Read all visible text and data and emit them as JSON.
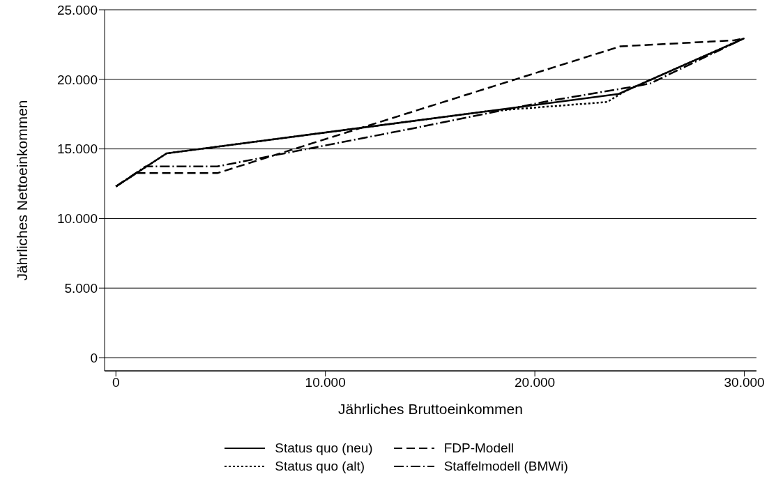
{
  "chart_data": {
    "type": "line",
    "xlabel": "Jährliches Bruttoeinkommen",
    "ylabel": "Jährliches Nettoeinkommen",
    "xlim": [
      -540,
      30580
    ],
    "ylim": [
      -950,
      25000
    ],
    "xticks": [
      0,
      {
        "value": 10000,
        "label": "10.000"
      },
      {
        "value": 20000,
        "label": "20.000"
      },
      {
        "value": 30000,
        "label": "30.000"
      }
    ],
    "yticks": [
      0,
      {
        "value": 5000,
        "label": "5.000"
      },
      {
        "value": 10000,
        "label": "10.000"
      },
      {
        "value": 15000,
        "label": "15.000"
      },
      {
        "value": 20000,
        "label": "20.000"
      },
      {
        "value": 25000,
        "label": "25.000"
      }
    ],
    "grid": "y",
    "legend": "bottom",
    "marker": "none",
    "series": [
      {
        "name": "Status quo (neu)",
        "color": "#000000",
        "line_style": "solid",
        "x": [
          0,
          2420,
          24000,
          30000
        ],
        "values": [
          12300,
          14680,
          18950,
          22950
        ]
      },
      {
        "name": "FDP-Modell",
        "color": "#000000",
        "line_style": "dashed",
        "x": [
          0,
          980,
          4840,
          24080,
          29500,
          30000
        ],
        "values": [
          12300,
          13260,
          13260,
          22370,
          22800,
          22950
        ]
      },
      {
        "name": "Status quo (alt)",
        "color": "#000000",
        "line_style": "dotted",
        "x": [
          0,
          2420,
          17700,
          23450,
          24300,
          30000
        ],
        "values": [
          12300,
          14680,
          17700,
          18370,
          19150,
          22950
        ]
      },
      {
        "name": "Staffelmodell (BMWi)",
        "color": "#000000",
        "line_style": "dashdot",
        "x": [
          0,
          1410,
          4840,
          14260,
          20750,
          24800,
          25500,
          30000
        ],
        "values": [
          12300,
          13740,
          13740,
          16500,
          18470,
          19500,
          19700,
          22950
        ]
      }
    ]
  }
}
